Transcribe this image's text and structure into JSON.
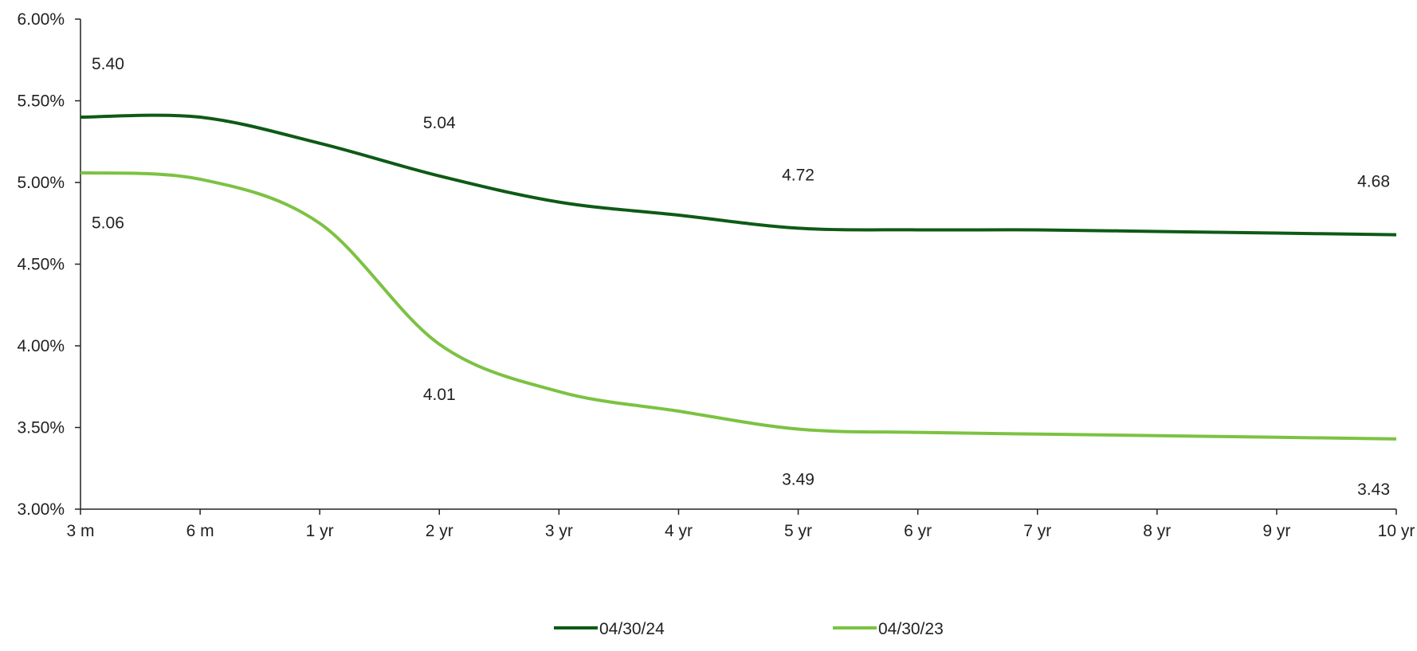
{
  "chart_data": {
    "type": "line",
    "title": "",
    "xlabel": "",
    "ylabel": "",
    "categories": [
      "3 m",
      "6 m",
      "1 yr",
      "2 yr",
      "3 yr",
      "4 yr",
      "5 yr",
      "6 yr",
      "7 yr",
      "8 yr",
      "9 yr",
      "10 yr"
    ],
    "y_ticks": [
      "6.00%",
      "5.50%",
      "5.00%",
      "4.50%",
      "4.00%",
      "3.50%",
      "3.00%"
    ],
    "ylim": [
      3.0,
      6.0
    ],
    "y_unit": "%",
    "grid": false,
    "legend_position": "bottom",
    "series": [
      {
        "name": "04/30/24",
        "color": "#0e5a16",
        "values": [
          5.4,
          5.4,
          5.24,
          5.04,
          4.88,
          4.8,
          4.72,
          4.71,
          4.71,
          4.7,
          4.69,
          4.68
        ],
        "data_labels": [
          {
            "index": 0,
            "text": "5.40"
          },
          {
            "index": 3,
            "text": "5.04"
          },
          {
            "index": 6,
            "text": "4.72"
          },
          {
            "index": 11,
            "text": "4.68"
          }
        ]
      },
      {
        "name": "04/30/23",
        "color": "#7cc242",
        "values": [
          5.06,
          5.02,
          4.75,
          4.01,
          3.72,
          3.6,
          3.49,
          3.47,
          3.46,
          3.45,
          3.44,
          3.43
        ],
        "data_labels": [
          {
            "index": 0,
            "text": "5.06"
          },
          {
            "index": 3,
            "text": "4.01"
          },
          {
            "index": 6,
            "text": "3.49"
          },
          {
            "index": 11,
            "text": "3.43"
          }
        ]
      }
    ]
  }
}
